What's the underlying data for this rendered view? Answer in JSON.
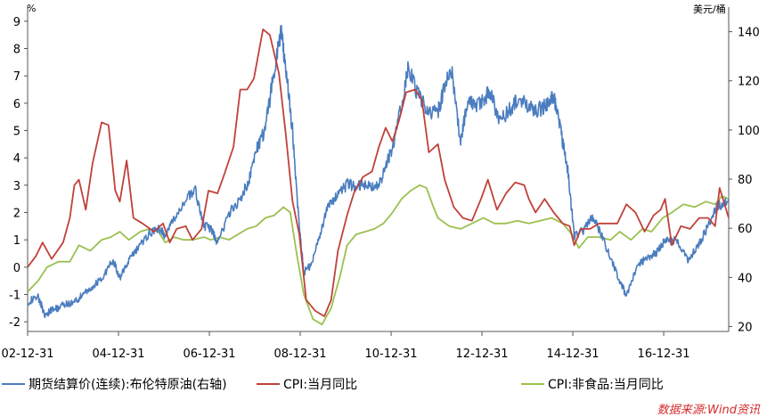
{
  "chart_data": {
    "type": "line",
    "left_axis": {
      "unit": "%",
      "ylim": [
        -2.5,
        9.5
      ],
      "ticks": [
        -2,
        -1,
        0,
        1,
        2,
        3,
        4,
        5,
        6,
        7,
        8,
        9
      ]
    },
    "right_axis": {
      "unit": "美元/桶",
      "ylim": [
        18,
        150
      ],
      "ticks": [
        20,
        40,
        60,
        80,
        100,
        120,
        140
      ]
    },
    "x_axis": {
      "range": [
        2002.92,
        2018.35
      ],
      "ticks": [
        {
          "x": 2002.92,
          "label": "02-12-31"
        },
        {
          "x": 2004.92,
          "label": "04-12-31"
        },
        {
          "x": 2006.92,
          "label": "06-12-31"
        },
        {
          "x": 2008.92,
          "label": "08-12-31"
        },
        {
          "x": 2010.92,
          "label": "10-12-31"
        },
        {
          "x": 2012.92,
          "label": "12-12-31"
        },
        {
          "x": 2014.92,
          "label": "14-12-31"
        },
        {
          "x": 2016.92,
          "label": "16-12-31"
        }
      ]
    },
    "series": [
      {
        "name": "期货结算价(连续):布伦特原油(右轴)",
        "axis": "right",
        "color": "#4a7dbf",
        "points": [
          [
            2002.92,
            30
          ],
          [
            2003.15,
            32
          ],
          [
            2003.3,
            25
          ],
          [
            2003.5,
            27
          ],
          [
            2003.75,
            29
          ],
          [
            2003.95,
            30
          ],
          [
            2004.15,
            33
          ],
          [
            2004.35,
            36
          ],
          [
            2004.6,
            41
          ],
          [
            2004.8,
            47
          ],
          [
            2004.95,
            40
          ],
          [
            2005.15,
            47
          ],
          [
            2005.35,
            52
          ],
          [
            2005.6,
            58
          ],
          [
            2005.8,
            60
          ],
          [
            2005.95,
            57
          ],
          [
            2006.1,
            62
          ],
          [
            2006.35,
            70
          ],
          [
            2006.6,
            76
          ],
          [
            2006.8,
            61
          ],
          [
            2006.95,
            60
          ],
          [
            2007.1,
            54
          ],
          [
            2007.35,
            66
          ],
          [
            2007.6,
            72
          ],
          [
            2007.8,
            80
          ],
          [
            2007.95,
            92
          ],
          [
            2008.15,
            100
          ],
          [
            2008.35,
            125
          ],
          [
            2008.5,
            140
          ],
          [
            2008.6,
            125
          ],
          [
            2008.75,
            100
          ],
          [
            2008.9,
            60
          ],
          [
            2009.0,
            42
          ],
          [
            2009.15,
            45
          ],
          [
            2009.35,
            57
          ],
          [
            2009.55,
            70
          ],
          [
            2009.75,
            73
          ],
          [
            2009.95,
            78
          ],
          [
            2010.15,
            77
          ],
          [
            2010.35,
            78
          ],
          [
            2010.55,
            76
          ],
          [
            2010.75,
            82
          ],
          [
            2010.95,
            93
          ],
          [
            2011.15,
            110
          ],
          [
            2011.3,
            125
          ],
          [
            2011.5,
            115
          ],
          [
            2011.7,
            108
          ],
          [
            2011.95,
            107
          ],
          [
            2012.1,
            118
          ],
          [
            2012.25,
            124
          ],
          [
            2012.45,
            95
          ],
          [
            2012.6,
            112
          ],
          [
            2012.75,
            110
          ],
          [
            2012.95,
            112
          ],
          [
            2013.1,
            116
          ],
          [
            2013.3,
            103
          ],
          [
            2013.5,
            108
          ],
          [
            2013.7,
            112
          ],
          [
            2013.95,
            110
          ],
          [
            2014.15,
            108
          ],
          [
            2014.35,
            110
          ],
          [
            2014.5,
            114
          ],
          [
            2014.65,
            100
          ],
          [
            2014.8,
            85
          ],
          [
            2014.95,
            57
          ],
          [
            2015.15,
            59
          ],
          [
            2015.35,
            65
          ],
          [
            2015.55,
            57
          ],
          [
            2015.75,
            48
          ],
          [
            2015.95,
            38
          ],
          [
            2016.1,
            33
          ],
          [
            2016.35,
            45
          ],
          [
            2016.55,
            48
          ],
          [
            2016.75,
            50
          ],
          [
            2016.95,
            55
          ],
          [
            2017.2,
            55
          ],
          [
            2017.45,
            47
          ],
          [
            2017.65,
            52
          ],
          [
            2017.85,
            59
          ],
          [
            2018.05,
            68
          ],
          [
            2018.35,
            72
          ]
        ]
      },
      {
        "name": "CPI:当月同比",
        "axis": "left",
        "color": "#c0413b",
        "points": [
          [
            2002.92,
            0.0
          ],
          [
            2003.1,
            0.4
          ],
          [
            2003.25,
            0.9
          ],
          [
            2003.45,
            0.3
          ],
          [
            2003.7,
            0.9
          ],
          [
            2003.85,
            1.8
          ],
          [
            2003.95,
            3.0
          ],
          [
            2004.05,
            3.2
          ],
          [
            2004.2,
            2.1
          ],
          [
            2004.35,
            3.8
          ],
          [
            2004.55,
            5.3
          ],
          [
            2004.7,
            5.2
          ],
          [
            2004.85,
            2.8
          ],
          [
            2004.95,
            2.4
          ],
          [
            2005.1,
            3.9
          ],
          [
            2005.25,
            1.8
          ],
          [
            2005.45,
            1.6
          ],
          [
            2005.7,
            1.3
          ],
          [
            2005.9,
            1.6
          ],
          [
            2006.05,
            0.9
          ],
          [
            2006.2,
            1.4
          ],
          [
            2006.4,
            1.5
          ],
          [
            2006.55,
            1.0
          ],
          [
            2006.75,
            1.4
          ],
          [
            2006.9,
            2.8
          ],
          [
            2007.1,
            2.7
          ],
          [
            2007.25,
            3.4
          ],
          [
            2007.45,
            4.4
          ],
          [
            2007.6,
            6.5
          ],
          [
            2007.75,
            6.5
          ],
          [
            2007.9,
            6.9
          ],
          [
            2008.1,
            8.7
          ],
          [
            2008.25,
            8.5
          ],
          [
            2008.45,
            7.1
          ],
          [
            2008.6,
            4.9
          ],
          [
            2008.75,
            2.4
          ],
          [
            2008.9,
            1.2
          ],
          [
            2009.05,
            -1.2
          ],
          [
            2009.25,
            -1.6
          ],
          [
            2009.45,
            -1.8
          ],
          [
            2009.6,
            -1.2
          ],
          [
            2009.75,
            0.6
          ],
          [
            2009.95,
            1.9
          ],
          [
            2010.1,
            2.7
          ],
          [
            2010.3,
            3.3
          ],
          [
            2010.5,
            3.5
          ],
          [
            2010.65,
            4.4
          ],
          [
            2010.8,
            5.1
          ],
          [
            2010.95,
            4.6
          ],
          [
            2011.1,
            5.4
          ],
          [
            2011.25,
            6.4
          ],
          [
            2011.45,
            6.5
          ],
          [
            2011.6,
            6.1
          ],
          [
            2011.75,
            4.2
          ],
          [
            2011.95,
            4.5
          ],
          [
            2012.1,
            3.2
          ],
          [
            2012.3,
            2.2
          ],
          [
            2012.5,
            1.8
          ],
          [
            2012.7,
            1.7
          ],
          [
            2012.9,
            2.5
          ],
          [
            2013.05,
            3.2
          ],
          [
            2013.25,
            2.1
          ],
          [
            2013.45,
            2.7
          ],
          [
            2013.65,
            3.1
          ],
          [
            2013.85,
            3.0
          ],
          [
            2013.95,
            2.5
          ],
          [
            2014.1,
            2.0
          ],
          [
            2014.3,
            2.5
          ],
          [
            2014.5,
            2.0
          ],
          [
            2014.7,
            1.6
          ],
          [
            2014.85,
            1.5
          ],
          [
            2014.95,
            0.8
          ],
          [
            2015.1,
            1.4
          ],
          [
            2015.3,
            1.4
          ],
          [
            2015.5,
            1.6
          ],
          [
            2015.7,
            1.6
          ],
          [
            2015.9,
            1.6
          ],
          [
            2016.1,
            2.3
          ],
          [
            2016.3,
            2.0
          ],
          [
            2016.5,
            1.3
          ],
          [
            2016.7,
            1.9
          ],
          [
            2016.85,
            2.1
          ],
          [
            2016.95,
            2.5
          ],
          [
            2017.1,
            0.8
          ],
          [
            2017.3,
            1.5
          ],
          [
            2017.5,
            1.4
          ],
          [
            2017.7,
            1.8
          ],
          [
            2017.9,
            1.8
          ],
          [
            2018.05,
            1.5
          ],
          [
            2018.15,
            2.9
          ],
          [
            2018.35,
            1.8
          ]
        ]
      },
      {
        "name": "CPI:非食品:当月同比",
        "axis": "left",
        "color": "#9bc04f",
        "points": [
          [
            2002.92,
            -0.9
          ],
          [
            2003.15,
            -0.5
          ],
          [
            2003.35,
            0.0
          ],
          [
            2003.6,
            0.2
          ],
          [
            2003.85,
            0.2
          ],
          [
            2004.05,
            0.8
          ],
          [
            2004.3,
            0.6
          ],
          [
            2004.55,
            1.0
          ],
          [
            2004.75,
            1.1
          ],
          [
            2004.95,
            1.3
          ],
          [
            2005.15,
            1.0
          ],
          [
            2005.4,
            1.3
          ],
          [
            2005.6,
            1.4
          ],
          [
            2005.8,
            1.3
          ],
          [
            2005.95,
            0.9
          ],
          [
            2006.15,
            1.1
          ],
          [
            2006.35,
            1.0
          ],
          [
            2006.55,
            1.0
          ],
          [
            2006.8,
            1.1
          ],
          [
            2006.95,
            1.0
          ],
          [
            2007.15,
            1.1
          ],
          [
            2007.35,
            1.0
          ],
          [
            2007.55,
            1.2
          ],
          [
            2007.75,
            1.4
          ],
          [
            2007.95,
            1.5
          ],
          [
            2008.15,
            1.8
          ],
          [
            2008.35,
            1.9
          ],
          [
            2008.55,
            2.2
          ],
          [
            2008.7,
            2.0
          ],
          [
            2008.85,
            0.4
          ],
          [
            2009.0,
            -1.0
          ],
          [
            2009.2,
            -1.9
          ],
          [
            2009.4,
            -2.1
          ],
          [
            2009.6,
            -1.5
          ],
          [
            2009.8,
            -0.3
          ],
          [
            2009.95,
            0.8
          ],
          [
            2010.15,
            1.2
          ],
          [
            2010.35,
            1.3
          ],
          [
            2010.55,
            1.4
          ],
          [
            2010.75,
            1.6
          ],
          [
            2010.95,
            2.0
          ],
          [
            2011.15,
            2.5
          ],
          [
            2011.35,
            2.8
          ],
          [
            2011.55,
            3.0
          ],
          [
            2011.7,
            2.9
          ],
          [
            2011.85,
            2.2
          ],
          [
            2011.95,
            1.8
          ],
          [
            2012.2,
            1.5
          ],
          [
            2012.45,
            1.4
          ],
          [
            2012.7,
            1.6
          ],
          [
            2012.95,
            1.8
          ],
          [
            2013.2,
            1.6
          ],
          [
            2013.45,
            1.6
          ],
          [
            2013.7,
            1.7
          ],
          [
            2013.95,
            1.6
          ],
          [
            2014.2,
            1.7
          ],
          [
            2014.45,
            1.8
          ],
          [
            2014.7,
            1.6
          ],
          [
            2014.9,
            1.2
          ],
          [
            2015.05,
            0.7
          ],
          [
            2015.25,
            1.1
          ],
          [
            2015.5,
            1.1
          ],
          [
            2015.75,
            1.0
          ],
          [
            2015.95,
            1.3
          ],
          [
            2016.2,
            1.0
          ],
          [
            2016.45,
            1.4
          ],
          [
            2016.65,
            1.3
          ],
          [
            2016.9,
            1.8
          ],
          [
            2017.1,
            2.0
          ],
          [
            2017.35,
            2.3
          ],
          [
            2017.6,
            2.2
          ],
          [
            2017.85,
            2.4
          ],
          [
            2018.05,
            2.3
          ],
          [
            2018.2,
            2.6
          ],
          [
            2018.35,
            2.5
          ]
        ]
      }
    ],
    "legend": [
      {
        "label": "期货结算价(连续):布伦特原油(右轴)",
        "color": "#4a7dbf"
      },
      {
        "label": "CPI:当月同比",
        "color": "#c0413b"
      },
      {
        "label": "CPI:非食品:当月同比",
        "color": "#9bc04f"
      }
    ],
    "source": "数据来源:Wind资讯"
  }
}
